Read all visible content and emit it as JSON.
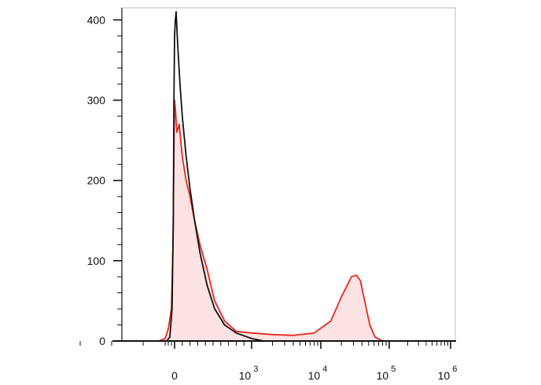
{
  "chart_data": {
    "type": "area",
    "title": "",
    "xlabel": "",
    "ylabel": "",
    "x_scale": "biexponential",
    "ylim": [
      0,
      415
    ],
    "y_ticks": [
      0,
      100,
      200,
      300,
      400
    ],
    "x_ticks": [
      {
        "base": "0",
        "exp": ""
      },
      {
        "base": "10",
        "exp": "3"
      },
      {
        "base": "10",
        "exp": "4"
      },
      {
        "base": "10",
        "exp": "5"
      },
      {
        "base": "10",
        "exp": "6"
      }
    ],
    "grid": false,
    "legend": "none",
    "series": [
      {
        "color": "#111111",
        "fill": "none",
        "points": [
          [
            -250,
            0
          ],
          [
            -150,
            5
          ],
          [
            -80,
            40
          ],
          [
            -40,
            150
          ],
          [
            -20,
            300
          ],
          [
            0,
            380
          ],
          [
            10,
            400
          ],
          [
            20,
            410
          ],
          [
            40,
            370
          ],
          [
            70,
            320
          ],
          [
            100,
            280
          ],
          [
            150,
            230
          ],
          [
            200,
            190
          ],
          [
            260,
            150
          ],
          [
            330,
            110
          ],
          [
            420,
            70
          ],
          [
            520,
            40
          ],
          [
            650,
            20
          ],
          [
            800,
            10
          ],
          [
            1000,
            3
          ],
          [
            1500,
            0
          ]
        ]
      },
      {
        "color": "#e8271e",
        "fill": "#fbe3e3",
        "points": [
          [
            -500,
            0
          ],
          [
            -300,
            3
          ],
          [
            -200,
            15
          ],
          [
            -100,
            40
          ],
          [
            -50,
            120
          ],
          [
            -20,
            240
          ],
          [
            0,
            300
          ],
          [
            10,
            290
          ],
          [
            30,
            260
          ],
          [
            60,
            270
          ],
          [
            100,
            230
          ],
          [
            150,
            200
          ],
          [
            200,
            180
          ],
          [
            260,
            150
          ],
          [
            330,
            120
          ],
          [
            420,
            90
          ],
          [
            520,
            50
          ],
          [
            650,
            25
          ],
          [
            800,
            12
          ],
          [
            1000,
            10
          ],
          [
            2000,
            8
          ],
          [
            4000,
            7
          ],
          [
            8000,
            10
          ],
          [
            14000,
            25
          ],
          [
            20000,
            55
          ],
          [
            28000,
            80
          ],
          [
            33000,
            82
          ],
          [
            38000,
            75
          ],
          [
            45000,
            45
          ],
          [
            52000,
            20
          ],
          [
            62000,
            5
          ],
          [
            80000,
            0
          ]
        ]
      }
    ]
  }
}
